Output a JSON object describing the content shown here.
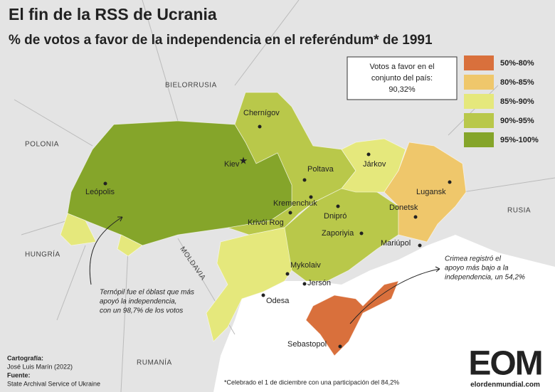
{
  "header": {
    "title": "El fin de la RSS de Ucrania",
    "subtitle": "% de votos a favor de la independencia en el referéndum* de 1991"
  },
  "summary_box": {
    "lines": [
      "Votos a favor en el",
      "conjunto del país:",
      "90,32%"
    ]
  },
  "legend": [
    {
      "label": "50%-80%",
      "color": "#d9703c"
    },
    {
      "label": "80%-85%",
      "color": "#efc76b"
    },
    {
      "label": "85%-90%",
      "color": "#e5e87c"
    },
    {
      "label": "90%-95%",
      "color": "#b9c84a"
    },
    {
      "label": "95%-100%",
      "color": "#85a52a"
    }
  ],
  "countries": [
    "BIELORRUSIA",
    "POLONIA",
    "HUNGRÍA",
    "MOLDAVIA",
    "RUSIA",
    "RUMANÍA"
  ],
  "cities": [
    "Chernígov",
    "Kiev",
    "Leópolis",
    "Poltava",
    "Járkov",
    "Lugansk",
    "Donetsk",
    "Kremenchuk",
    "Dnipró",
    "Krivói Rog",
    "Zaporiyia",
    "Mariúpol",
    "Mykolaiv",
    "Jersón",
    "Odesa",
    "Sebastopol"
  ],
  "annotations": [
    {
      "lines": [
        "Ternópil fue el óblast que más",
        "apoyó la independencia,",
        "con un 98,7% de los votos"
      ]
    },
    {
      "lines": [
        "Crimea registró el",
        "apoyo más bajo a la",
        "independencia, un 54,2%"
      ]
    }
  ],
  "credits": {
    "cartography_label": "Cartografía:",
    "cartography": "José Luis Marín (2022)",
    "source_label": "Fuente:",
    "source": "State Archival Service of Ukraine"
  },
  "footnote": "*Celebrado el 1 de diciembre con una participación del 84,2%",
  "logo": {
    "mark": "EOM",
    "site": "elordenmundial.com"
  }
}
